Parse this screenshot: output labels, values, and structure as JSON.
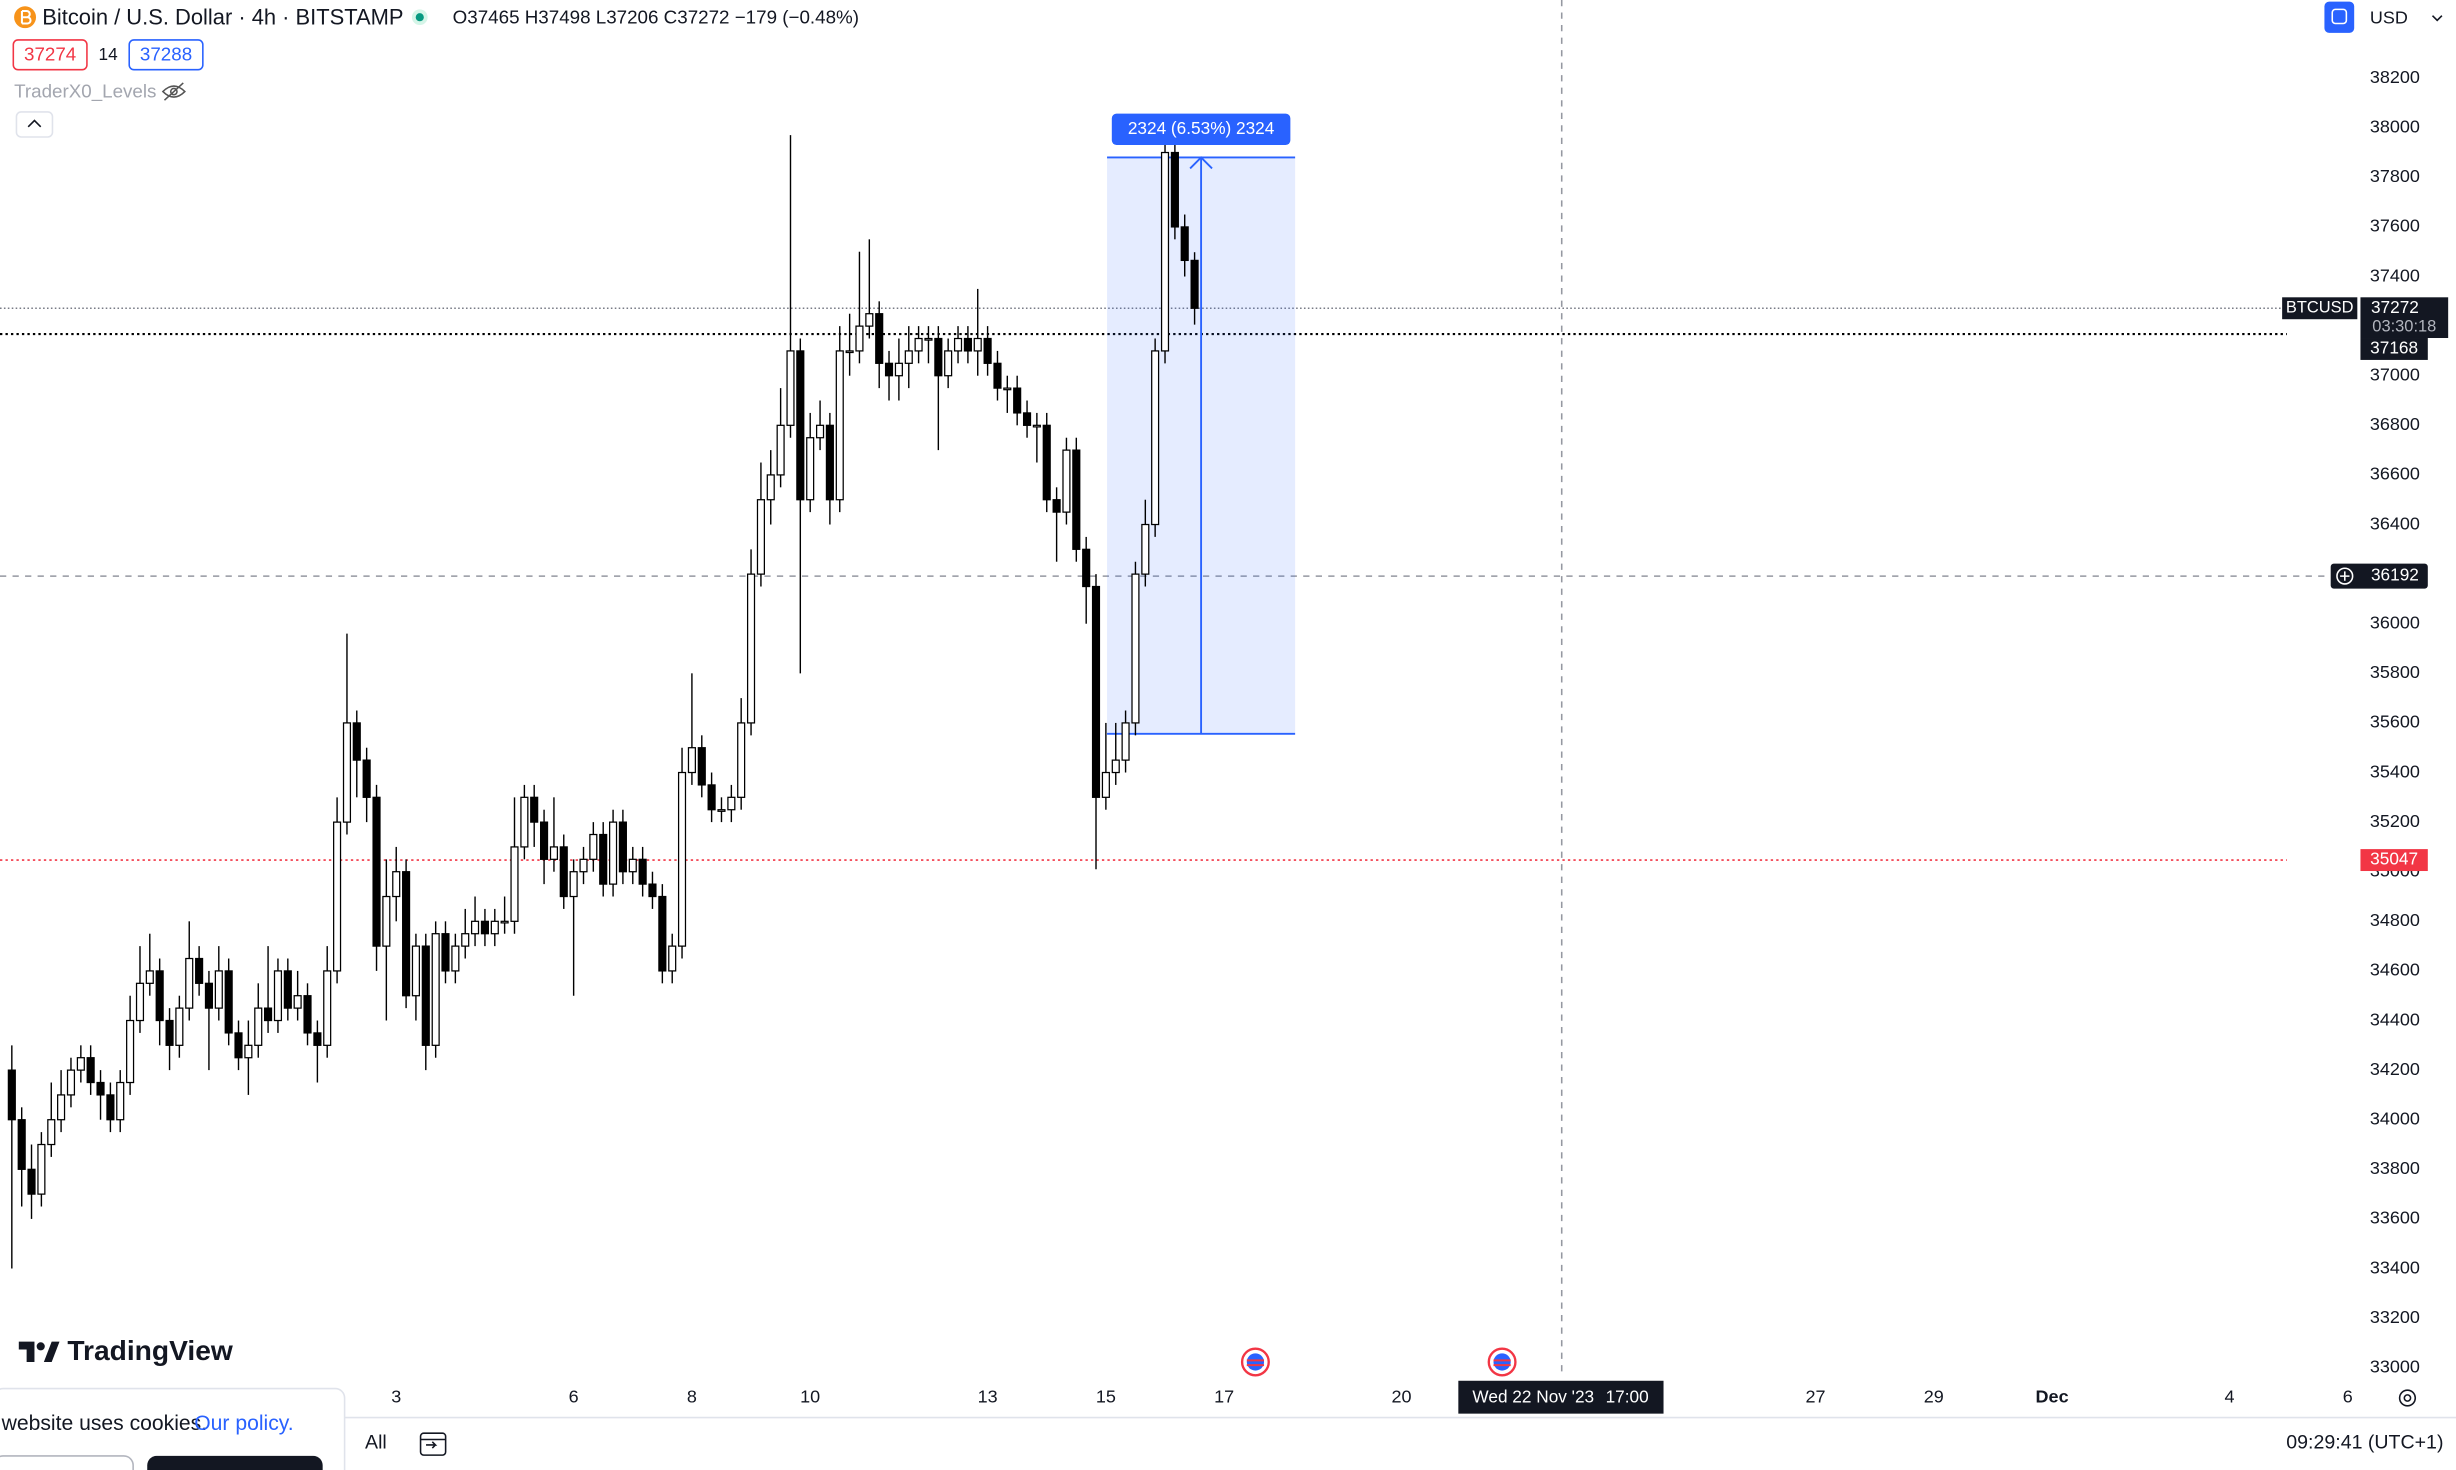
{
  "header": {
    "symbol": "Bitcoin / U.S. Dollar · 4h · BITSTAMP",
    "ohlc": "O37465 H37498 L37206 C37272 −179 (−0.48%)",
    "bid": "37274",
    "spread": "14",
    "ask": "37288",
    "indicator": "TraderX0_Levels",
    "currency": "USD"
  },
  "brand": "TradingView",
  "cookie": {
    "text": "website uses cookies.",
    "link": "Our policy."
  },
  "footer": {
    "range": "All",
    "clock": "09:29:41 (UTC+1)"
  },
  "chart_data": {
    "type": "candlestick",
    "x": [
      -3.5,
      -3.333,
      -3.167,
      -3,
      -2.833,
      -2.667,
      -2.5,
      -2.333,
      -2.167,
      -2,
      -1.833,
      -1.667,
      -1.5,
      -1.333,
      -1.167,
      -1,
      -0.833,
      -0.667,
      -0.5,
      -0.333,
      -0.167,
      0,
      0.167,
      0.333,
      0.5,
      0.667,
      0.833,
      1,
      1.167,
      1.333,
      1.5,
      1.667,
      1.833,
      2,
      2.167,
      2.333,
      2.5,
      2.667,
      2.833,
      3,
      3.167,
      3.333,
      3.5,
      3.667,
      3.833,
      4,
      4.167,
      4.333,
      4.5,
      4.667,
      4.833,
      5,
      5.167,
      5.333,
      5.5,
      5.667,
      5.833,
      6,
      6.167,
      6.333,
      6.5,
      6.667,
      6.833,
      7,
      7.167,
      7.333,
      7.5,
      7.667,
      7.833,
      8,
      8.167,
      8.333,
      8.5,
      8.667,
      8.833,
      9,
      9.167,
      9.333,
      9.5,
      9.667,
      9.833,
      10,
      10.167,
      10.333,
      10.5,
      10.667,
      10.833,
      11,
      11.167,
      11.333,
      11.5,
      11.667,
      11.833,
      12,
      12.167,
      12.333,
      12.5,
      12.667,
      12.833,
      13,
      13.167,
      13.333,
      13.5,
      13.667,
      13.833,
      14,
      14.167,
      14.333,
      14.5,
      14.667,
      14.833,
      15,
      15.167,
      15.333,
      15.5,
      15.667,
      15.833,
      16,
      16.167,
      16.333,
      16.5
    ],
    "open": [
      34200,
      34000,
      33800,
      33700,
      33900,
      34000,
      34100,
      34200,
      34250,
      34150,
      34100,
      34000,
      34150,
      34400,
      34550,
      34600,
      34400,
      34300,
      34450,
      34650,
      34550,
      34450,
      34600,
      34350,
      34250,
      34300,
      34450,
      34400,
      34600,
      34450,
      34500,
      34350,
      34300,
      34600,
      35200,
      35600,
      35450,
      35300,
      34700,
      34900,
      35000,
      34500,
      34700,
      34300,
      34750,
      34600,
      34700,
      34750,
      34800,
      34750,
      34800,
      34800,
      35100,
      35300,
      35200,
      35050,
      35100,
      34900,
      35000,
      35050,
      35150,
      34950,
      35200,
      35000,
      35050,
      34950,
      34900,
      34600,
      34700,
      35400,
      35500,
      35350,
      35250,
      35250,
      35300,
      35600,
      36200,
      36500,
      36600,
      36800,
      37100,
      36500,
      36750,
      36800,
      36500,
      37100,
      37100,
      37200,
      37250,
      37050,
      37000,
      37050,
      37100,
      37150,
      37150,
      37000,
      37100,
      37150,
      37100,
      37150,
      37050,
      36950,
      36950,
      36850,
      36800,
      36800,
      36500,
      36450,
      36700,
      36300,
      36150,
      35300,
      35400,
      35450,
      35600,
      36200,
      36400,
      37100,
      37900,
      37600,
      37465
    ],
    "high": [
      34300,
      34050,
      33900,
      33950,
      34150,
      34200,
      34250,
      34300,
      34300,
      34200,
      34150,
      34200,
      34500,
      34700,
      34750,
      34650,
      34450,
      34500,
      34800,
      34700,
      34600,
      34700,
      34650,
      34400,
      34400,
      34550,
      34700,
      34650,
      34650,
      34600,
      34550,
      34400,
      34700,
      35300,
      35960,
      35650,
      35500,
      35350,
      35050,
      35100,
      35050,
      34750,
      34750,
      34800,
      34800,
      34750,
      34850,
      34900,
      34850,
      34850,
      34900,
      35300,
      35350,
      35350,
      35250,
      35300,
      35150,
      35050,
      35100,
      35200,
      35200,
      35250,
      35250,
      35100,
      35100,
      35000,
      34950,
      34750,
      35500,
      35800,
      35550,
      35400,
      35300,
      35350,
      35700,
      36300,
      36650,
      36700,
      36950,
      37970,
      37150,
      36850,
      36900,
      36850,
      37200,
      37250,
      37500,
      37550,
      37300,
      37100,
      37150,
      37200,
      37200,
      37200,
      37200,
      37150,
      37200,
      37200,
      37350,
      37200,
      37100,
      37000,
      37000,
      36900,
      36850,
      36850,
      36550,
      36750,
      36750,
      36350,
      36200,
      35600,
      35600,
      35650,
      36250,
      36500,
      37150,
      37980,
      37970,
      37650,
      37498
    ],
    "low": [
      33400,
      33650,
      33600,
      33650,
      33850,
      33950,
      34050,
      34150,
      34100,
      34000,
      33950,
      33950,
      34100,
      34350,
      34500,
      34300,
      34200,
      34250,
      34400,
      34500,
      34200,
      34400,
      34300,
      34200,
      34100,
      34250,
      34350,
      34350,
      34400,
      34400,
      34300,
      34150,
      34250,
      34550,
      35150,
      35300,
      35200,
      34600,
      34400,
      34800,
      34450,
      34400,
      34200,
      34250,
      34550,
      34550,
      34650,
      34700,
      34700,
      34700,
      34750,
      34750,
      35050,
      35100,
      34950,
      35000,
      34850,
      34500,
      34950,
      35000,
      34900,
      34900,
      34950,
      34950,
      34900,
      34850,
      34550,
      34550,
      34650,
      35350,
      35300,
      35200,
      35200,
      35200,
      35250,
      35550,
      36150,
      36400,
      36550,
      36750,
      35800,
      36450,
      36700,
      36400,
      36450,
      37000,
      37050,
      37150,
      36950,
      36900,
      36900,
      36950,
      37050,
      37050,
      36700,
      36950,
      37050,
      37050,
      37000,
      37000,
      36900,
      36850,
      36800,
      36750,
      36650,
      36450,
      36250,
      36400,
      36250,
      36000,
      35010,
      35250,
      35350,
      35400,
      35550,
      36150,
      36350,
      37050,
      37550,
      37400,
      37206
    ],
    "close": [
      34000,
      33800,
      33700,
      33900,
      34000,
      34100,
      34200,
      34250,
      34150,
      34100,
      34000,
      34150,
      34400,
      34550,
      34600,
      34400,
      34300,
      34450,
      34650,
      34550,
      34450,
      34600,
      34350,
      34250,
      34300,
      34450,
      34400,
      34600,
      34450,
      34500,
      34350,
      34300,
      34600,
      35200,
      35600,
      35450,
      35300,
      34700,
      34900,
      35000,
      34500,
      34700,
      34300,
      34750,
      34600,
      34700,
      34750,
      34800,
      34750,
      34800,
      34800,
      35100,
      35300,
      35200,
      35050,
      35100,
      34900,
      35000,
      35050,
      35150,
      34950,
      35200,
      35000,
      35050,
      34950,
      34900,
      34600,
      34700,
      35400,
      35500,
      35350,
      35250,
      35250,
      35300,
      35600,
      36200,
      36500,
      36600,
      36800,
      37100,
      36500,
      36750,
      36800,
      36500,
      37100,
      37100,
      37200,
      37250,
      37050,
      37000,
      37050,
      37100,
      37150,
      37150,
      37000,
      37100,
      37150,
      37100,
      37150,
      37050,
      36950,
      36950,
      36850,
      36800,
      36800,
      36500,
      36450,
      36700,
      36300,
      36150,
      35300,
      35400,
      35450,
      35600,
      36200,
      36400,
      37100,
      37900,
      37600,
      37465,
      37272
    ],
    "up_color": "#ffffff",
    "down_color": "#000000",
    "wick_color": "#000000",
    "xlim": [
      -3.7,
      37.83
    ],
    "xticks": [
      3,
      6,
      8,
      10,
      13,
      15,
      17,
      20,
      27,
      29,
      {
        "value": 31,
        "label": "Dec"
      },
      {
        "value": 34,
        "label": "4"
      },
      {
        "value": 36,
        "label": "6"
      }
    ],
    "ylim": [
      32960,
      38515
    ],
    "yticks": [
      33000,
      33200,
      33400,
      33600,
      33800,
      34000,
      34200,
      34400,
      34600,
      34800,
      35000,
      35200,
      35400,
      35600,
      35800,
      36000,
      36200,
      36400,
      36600,
      36800,
      37000,
      37200,
      37400,
      37600,
      37800,
      38000,
      38200
    ],
    "price_lines": [
      {
        "name": "BTCUSD",
        "value": 37272,
        "countdown": "03:30:18",
        "color": "#787b86"
      },
      {
        "value": 37168,
        "color": "#000000"
      },
      {
        "value": 35047,
        "color": "#f23645"
      }
    ],
    "measure": {
      "x": [
        15.02,
        18.2
      ],
      "y": [
        35556,
        37880
      ],
      "label": "2324 (6.53%) 2324",
      "color": "#2962ff"
    },
    "crosshair": {
      "x": 22.708,
      "y": 36192,
      "date": "Wed 22 Nov '23",
      "time": "17:00"
    }
  }
}
